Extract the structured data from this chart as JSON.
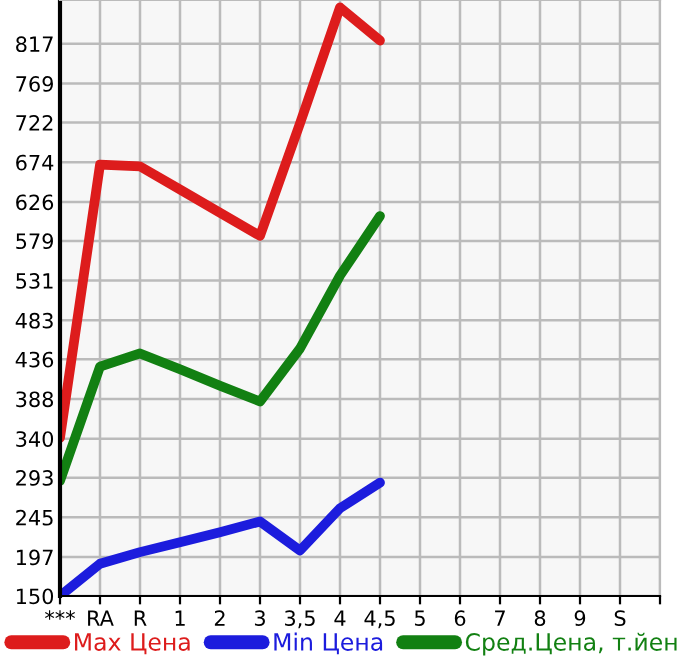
{
  "chart_data": {
    "type": "line",
    "categories": [
      "***",
      "RA",
      "R",
      "1",
      "2",
      "3",
      "3,5",
      "4",
      "4,5",
      "5",
      "6",
      "7",
      "8",
      "9",
      "S",
      null
    ],
    "series": [
      {
        "name": "Max Цена",
        "color": "#dd1c1c",
        "values": [
          341,
          671,
          669,
          641,
          613,
          585,
          721,
          861,
          821,
          null,
          null,
          null,
          null,
          null,
          null,
          null
        ]
      },
      {
        "name": "Min Цена",
        "color": "#1c1cdd",
        "values": [
          150,
          189,
          203,
          215,
          227,
          240,
          205,
          256,
          287,
          null,
          null,
          null,
          null,
          null,
          null,
          null
        ]
      },
      {
        "name": "Сред.Цена, т.йен",
        "color": "#128012",
        "values": [
          289,
          427,
          443,
          424,
          404,
          385,
          449,
          537,
          609,
          null,
          null,
          null,
          null,
          null,
          null,
          null
        ]
      }
    ],
    "ylim": [
      150,
      870
    ],
    "yticks": [
      150,
      197,
      245,
      293,
      340,
      388,
      436,
      483,
      531,
      579,
      626,
      674,
      722,
      769,
      817
    ],
    "grid": true,
    "legend": "bottom",
    "marker": "none",
    "line_style": "solid"
  }
}
